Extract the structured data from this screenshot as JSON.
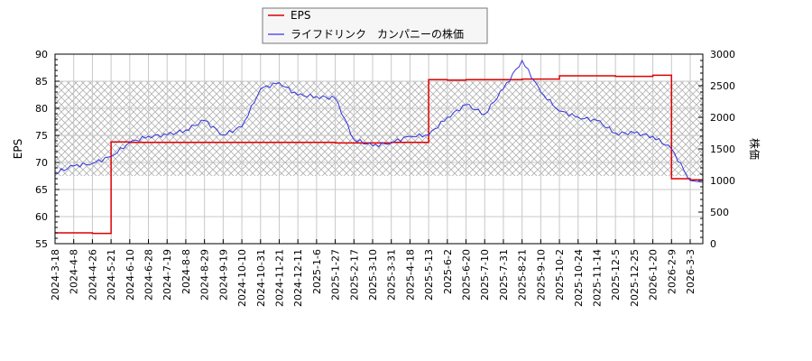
{
  "legend": {
    "items": [
      {
        "label": "EPS",
        "color": "#dd0000"
      },
      {
        "label": "ライフドリンク　カンパニーの株価",
        "color": "#3333dd"
      }
    ]
  },
  "axes": {
    "left_label": "EPS",
    "right_label": "株価"
  },
  "chart_data": {
    "type": "line",
    "title": "",
    "xlabel": "",
    "ylabel": "EPS",
    "y2label": "株価",
    "ylim": [
      55,
      90
    ],
    "y2lim": [
      0,
      3000
    ],
    "yticks": [
      55,
      60,
      65,
      70,
      75,
      80,
      85,
      90
    ],
    "y2ticks": [
      0,
      500,
      1000,
      1500,
      2000,
      2500,
      3000
    ],
    "grid": true,
    "legend_position": "top-center",
    "shaded_band": {
      "ymin": 67.5,
      "ymax": 85,
      "style": "crosshatch"
    },
    "categories": [
      "2024-3-18",
      "2024-4-8",
      "2024-4-26",
      "2024-5-21",
      "2024-6-10",
      "2024-6-28",
      "2024-7-19",
      "2024-8-8",
      "2024-8-29",
      "2024-9-19",
      "2024-10-10",
      "2024-10-31",
      "2024-11-21",
      "2024-12-11",
      "2025-1-6",
      "2025-1-27",
      "2025-2-17",
      "2025-3-10",
      "2025-3-31",
      "2025-4-18",
      "2025-5-13",
      "2025-6-2",
      "2025-6-20",
      "2025-7-10",
      "2025-7-31",
      "2025-8-21",
      "2025-9-10",
      "2025-10-2",
      "2025-10-24",
      "2025-11-14",
      "2025-12-5",
      "2025-12-25",
      "2026-1-20",
      "2026-2-9",
      "2026-3-3"
    ],
    "series": [
      {
        "name": "EPS",
        "axis": "left",
        "color": "#dd0000",
        "values": [
          57.0,
          57.0,
          56.9,
          73.8,
          73.7,
          73.7,
          73.7,
          73.7,
          73.7,
          73.7,
          73.7,
          73.7,
          73.7,
          73.7,
          73.7,
          73.6,
          73.6,
          73.6,
          73.7,
          73.7,
          85.3,
          85.2,
          85.3,
          85.3,
          85.3,
          85.4,
          85.4,
          86.0,
          86.0,
          86.0,
          85.9,
          85.9,
          86.1,
          67.0,
          66.8
        ]
      },
      {
        "name": "ライフドリンク　カンパニーの株価",
        "axis": "right",
        "color": "#3333dd",
        "values": [
          1120,
          1230,
          1270,
          1380,
          1600,
          1700,
          1720,
          1800,
          1950,
          1720,
          1850,
          2450,
          2550,
          2350,
          2330,
          2300,
          1650,
          1550,
          1600,
          1700,
          1720,
          2000,
          2200,
          2050,
          2450,
          2900,
          2400,
          2100,
          2000,
          1950,
          1750,
          1750,
          1700,
          1500,
          1000
        ]
      }
    ]
  }
}
